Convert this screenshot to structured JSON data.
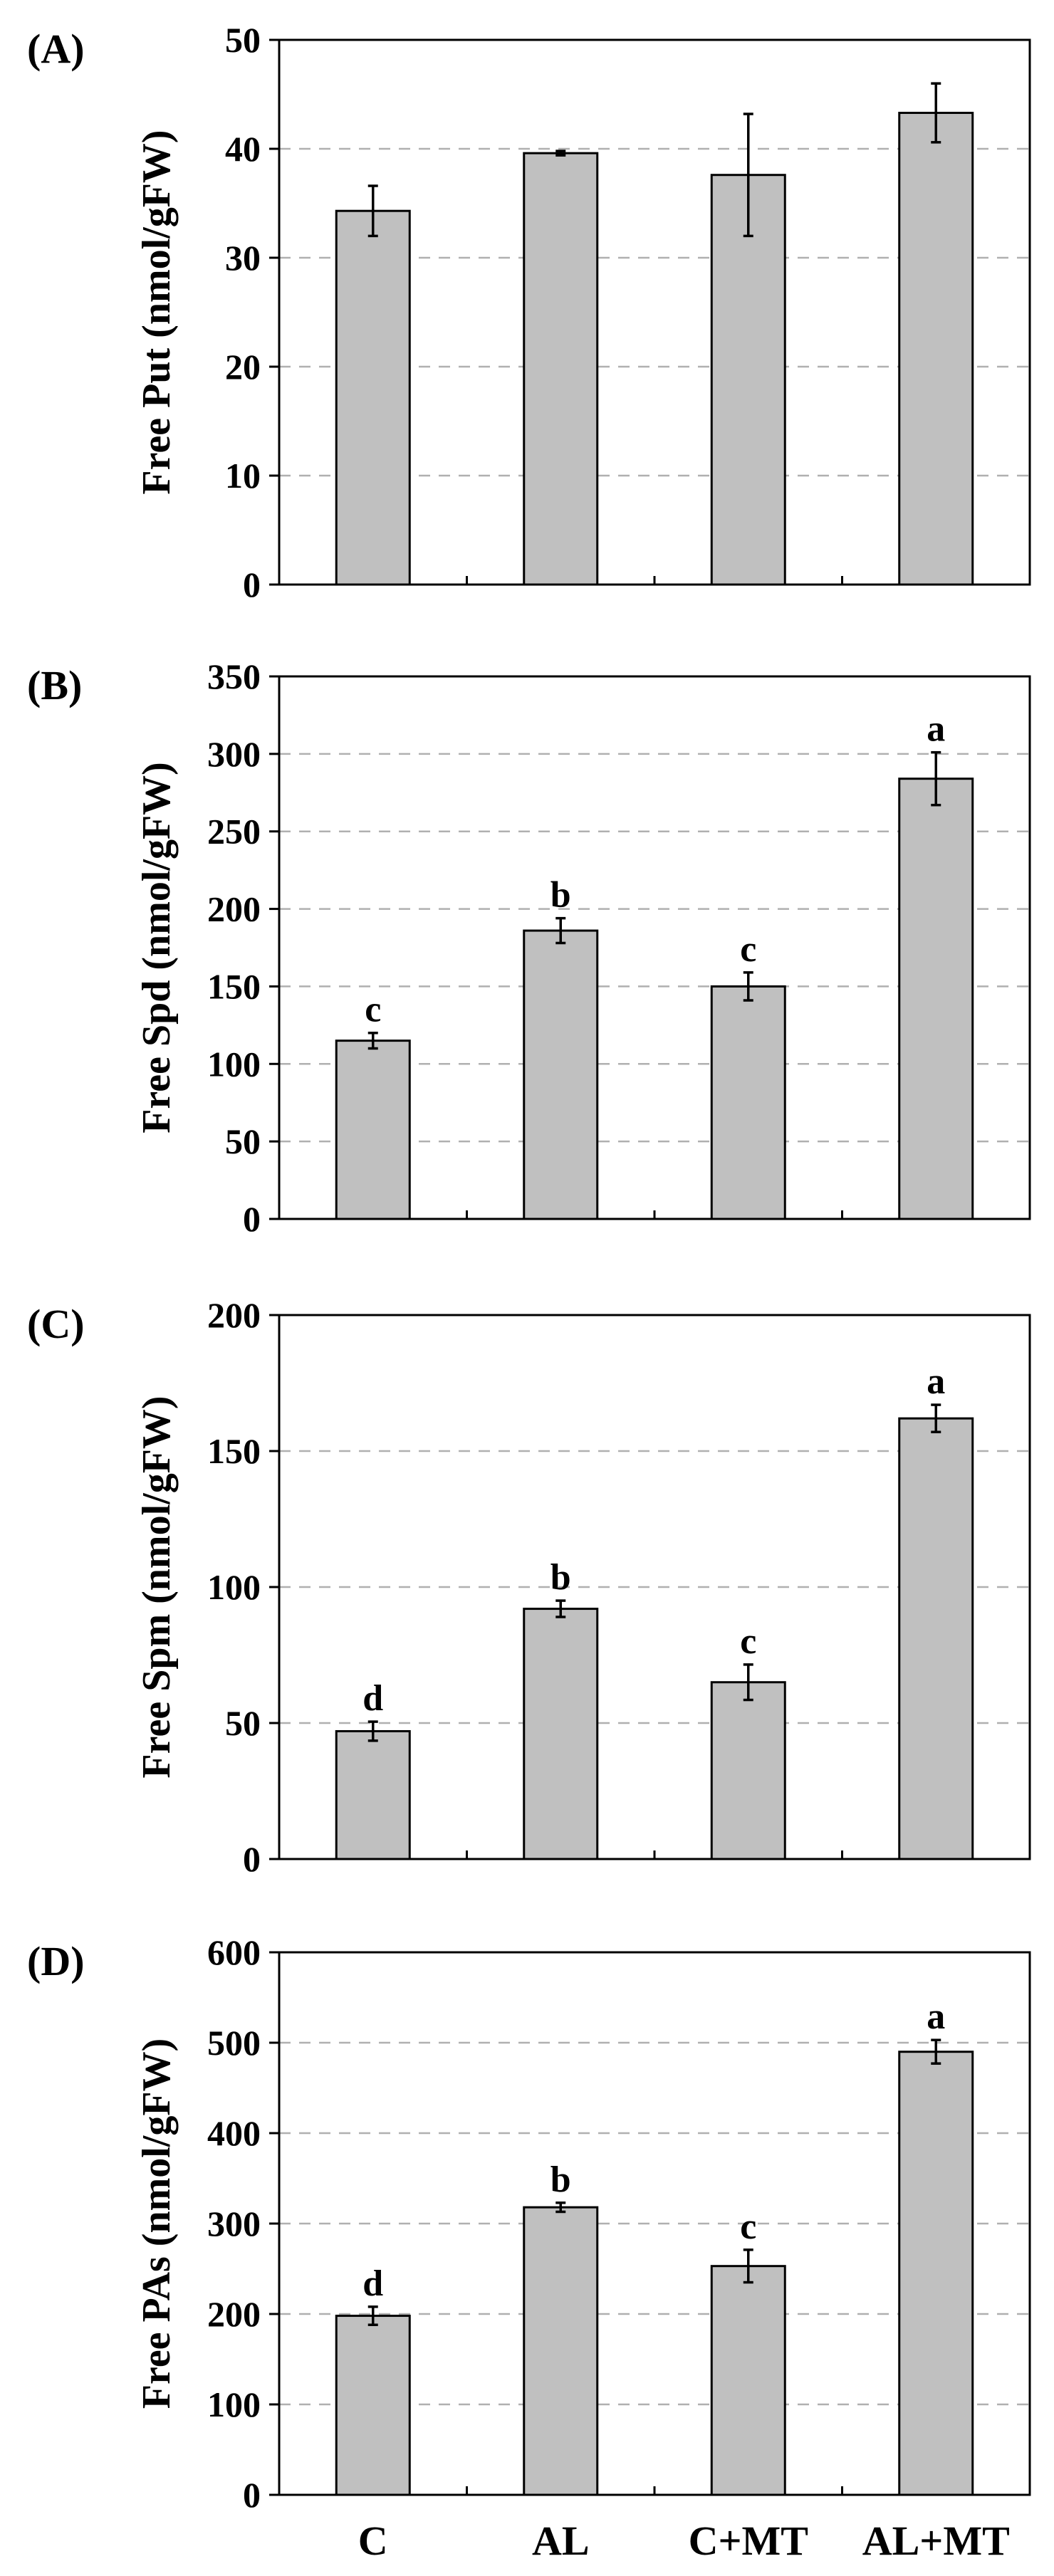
{
  "chart_data": [
    {
      "type": "bar",
      "panel_label": "(A)",
      "ylabel": "Free Put (nmol/gFW)",
      "categories": [
        "C",
        "AL",
        "C+MT",
        "AL+MT"
      ],
      "values": [
        34.3,
        39.6,
        37.6,
        43.3
      ],
      "errors": [
        2.3,
        0.2,
        5.6,
        2.7
      ],
      "significance": [
        "",
        "",
        "",
        ""
      ],
      "ylim": [
        0,
        50
      ],
      "yticks": [
        "0",
        "10",
        "20",
        "30",
        "40",
        "50"
      ],
      "grid": true
    },
    {
      "type": "bar",
      "panel_label": "(B)",
      "ylabel": "Free Spd (nmol/gFW)",
      "categories": [
        "C",
        "AL",
        "C+MT",
        "AL+MT"
      ],
      "values": [
        115,
        186,
        150,
        284
      ],
      "errors": [
        5,
        8,
        9,
        17
      ],
      "significance": [
        "c",
        "b",
        "c",
        "a"
      ],
      "ylim": [
        0,
        350
      ],
      "yticks": [
        "0",
        "50",
        "100",
        "150",
        "200",
        "250",
        "300",
        "350"
      ],
      "grid": true
    },
    {
      "type": "bar",
      "panel_label": "(C)",
      "ylabel": "Free Spm (nmol/gFW)",
      "categories": [
        "C",
        "AL",
        "C+MT",
        "AL+MT"
      ],
      "values": [
        47,
        92,
        65,
        162
      ],
      "errors": [
        3.5,
        3,
        6.5,
        5
      ],
      "significance": [
        "d",
        "b",
        "c",
        "a"
      ],
      "ylim": [
        0,
        200
      ],
      "yticks": [
        "0",
        "50",
        "100",
        "150",
        "200"
      ],
      "grid": true
    },
    {
      "type": "bar",
      "panel_label": "(D)",
      "ylabel": "Free PAs (nmol/gFW)",
      "categories": [
        "C",
        "AL",
        "C+MT",
        "AL+MT"
      ],
      "values": [
        198,
        318,
        253,
        490
      ],
      "errors": [
        10,
        5,
        18,
        13
      ],
      "significance": [
        "d",
        "b",
        "c",
        "a"
      ],
      "ylim": [
        0,
        600
      ],
      "yticks": [
        "0",
        "100",
        "200",
        "300",
        "400",
        "500",
        "600"
      ],
      "grid": true
    }
  ]
}
